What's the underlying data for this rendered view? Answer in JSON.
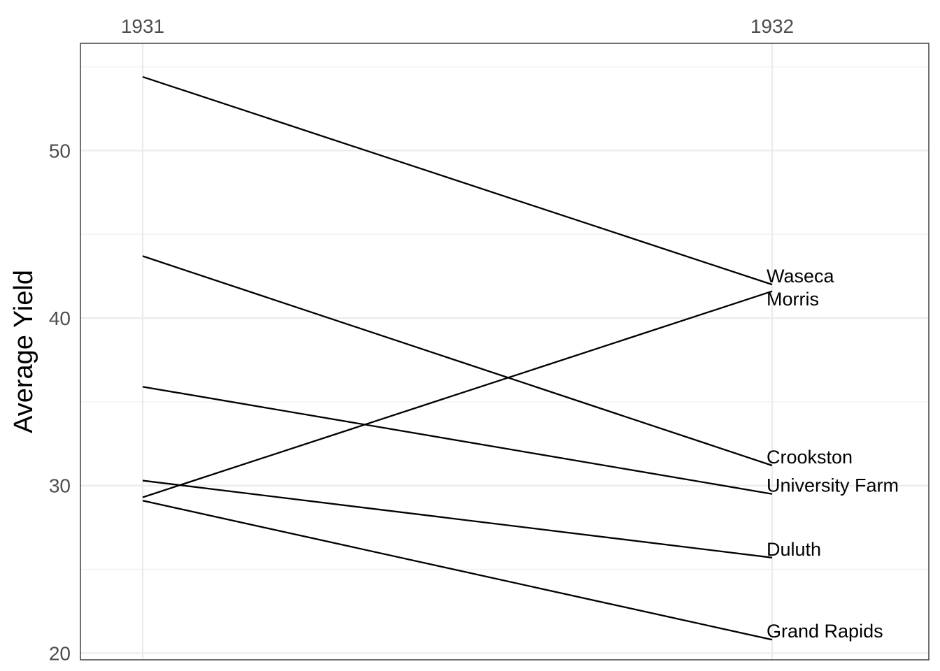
{
  "chart_data": {
    "type": "line",
    "x": [
      "1931",
      "1932"
    ],
    "ylabel": "Average Yield",
    "ylim": [
      19.6,
      56.4
    ],
    "y_ticks": [
      20,
      30,
      40,
      50
    ],
    "y_minor_ticks": [
      25,
      35,
      45,
      55
    ],
    "x_axis_position": "top",
    "grid": true,
    "series_label_position": "end",
    "series": [
      {
        "name": "Waseca",
        "values": [
          54.4,
          42.0
        ]
      },
      {
        "name": "Morris",
        "values": [
          29.3,
          41.6
        ]
      },
      {
        "name": "Crookston",
        "values": [
          43.7,
          31.2
        ]
      },
      {
        "name": "University Farm",
        "values": [
          35.9,
          29.5
        ]
      },
      {
        "name": "Duluth",
        "values": [
          30.3,
          25.7
        ]
      },
      {
        "name": "Grand Rapids",
        "values": [
          29.1,
          20.8
        ]
      }
    ],
    "colors": {
      "line": "#000000",
      "grid": "#ebebeb",
      "tick_text": "#4d4d4d",
      "border": "#333333"
    }
  }
}
